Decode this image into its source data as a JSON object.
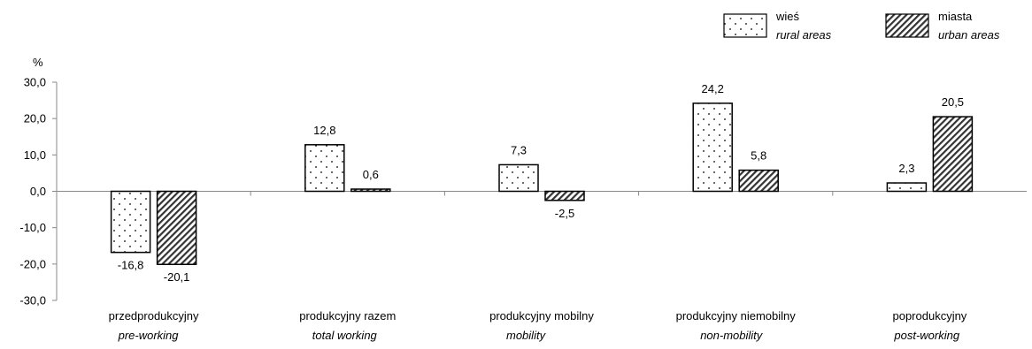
{
  "chart_data": {
    "type": "bar",
    "ylabel": "%",
    "ylim": [
      -30,
      30
    ],
    "yticks": [
      "30,0",
      "20,0",
      "10,0",
      "0,0",
      "-10,0",
      "-20,0",
      "-30,0"
    ],
    "grid": false,
    "legend_position": "top-right",
    "categories": [
      {
        "label": "przedprodukcyjny",
        "sublabel": "pre-working"
      },
      {
        "label": "produkcyjny razem",
        "sublabel": "total working"
      },
      {
        "label": "produkcyjny mobilny",
        "sublabel": "mobility"
      },
      {
        "label": "produkcyjny niemobilny",
        "sublabel": "non-mobility"
      },
      {
        "label": "poprodukcyjny",
        "sublabel": "post-working"
      }
    ],
    "series": [
      {
        "name": "wieś",
        "sublabel": "rural areas",
        "pattern": "dots",
        "values": [
          -16.8,
          12.8,
          7.3,
          24.2,
          2.3
        ],
        "value_labels": [
          "-16,8",
          "12,8",
          "7,3",
          "24,2",
          "2,3"
        ]
      },
      {
        "name": "miasta",
        "sublabel": "urban areas",
        "pattern": "hatch",
        "values": [
          -20.1,
          0.6,
          -2.5,
          5.8,
          20.5
        ],
        "value_labels": [
          "-20,1",
          "0,6",
          "-2,5",
          "5,8",
          "20,5"
        ]
      }
    ]
  }
}
